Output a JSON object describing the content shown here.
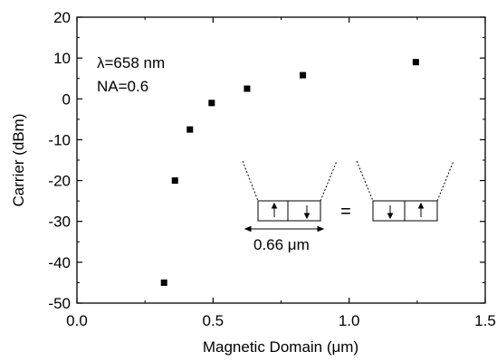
{
  "chart_data": {
    "type": "scatter",
    "xlabel": "Magnetic Domain (μm)",
    "ylabel": "Carrier (dBm)",
    "xlim": [
      0.0,
      1.5
    ],
    "ylim": [
      -50,
      20
    ],
    "xticks": [
      "0.0",
      "0.5",
      "1.0",
      "1.5"
    ],
    "xtick_values": [
      0.0,
      0.5,
      1.0,
      1.5
    ],
    "yticks": [
      "-50",
      "-40",
      "-30",
      "-20",
      "-10",
      "0",
      "10",
      "20"
    ],
    "ytick_values": [
      -50,
      -40,
      -30,
      -20,
      -10,
      0,
      10,
      20
    ],
    "grid": false,
    "series": [
      {
        "x": [
          0.32,
          0.36,
          0.415,
          0.495,
          0.625,
          0.83,
          1.245
        ],
        "y": [
          -45,
          -20,
          -7.5,
          -1,
          2.5,
          5.8,
          9
        ]
      }
    ],
    "annotations": {
      "wavelength": "λ=658 nm",
      "na": "NA=0.6",
      "domain_size": "0.66 μm",
      "equals": "="
    }
  }
}
